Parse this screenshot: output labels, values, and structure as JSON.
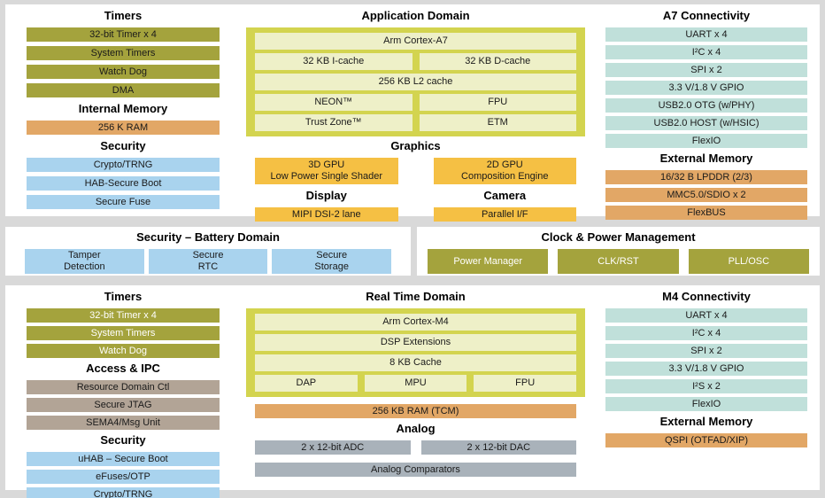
{
  "colors": {
    "olive": "#a4a33d",
    "orange": "#e2a766",
    "blue": "#a9d3ee",
    "teal": "#c0e0da",
    "amber": "#f5c044",
    "domain_container": "#d3d44f",
    "domain_cell": "#eef0c8",
    "tan": "#b2a496",
    "gray": "#a9b2ba",
    "panel_bg": "#ffffff",
    "page_bg": "#d9d9d9"
  },
  "top_panel": {
    "left": {
      "timers_header": "Timers",
      "timers": [
        "32-bit Timer x 4",
        "System Timers",
        "Watch Dog",
        "DMA"
      ],
      "internal_memory_header": "Internal Memory",
      "internal_memory": [
        "256 K RAM"
      ],
      "security_header": "Security",
      "security": [
        "Crypto/TRNG",
        "HAB-Secure Boot",
        "Secure Fuse"
      ]
    },
    "center": {
      "header": "Application Domain",
      "cpu_rows": {
        "row1": [
          "Arm Cortex-A7"
        ],
        "row2": [
          "32 KB I-cache",
          "32 KB D-cache"
        ],
        "row3": [
          "256 KB L2 cache"
        ],
        "row4": [
          "NEON™",
          "FPU"
        ],
        "row5": [
          "Trust Zone™",
          "ETM"
        ]
      },
      "graphics_header": "Graphics",
      "graphics": [
        "3D GPU\nLow Power Single Shader",
        "2D GPU\nComposition Engine"
      ],
      "display_header": "Display",
      "display": "MIPI DSI-2 lane",
      "camera_header": "Camera",
      "camera": "Parallel I/F"
    },
    "right": {
      "connectivity_header": "A7 Connectivity",
      "connectivity": [
        "UART x 4",
        "I²C x 4",
        "SPI x 2",
        "3.3 V/1.8 V GPIO",
        "USB2.0 OTG (w/PHY)",
        "USB2.0 HOST (w/HSIC)",
        "FlexIO"
      ],
      "external_memory_header": "External Memory",
      "external_memory": [
        "16/32 B LPDDR (2/3)",
        "MMC5.0/SDIO x 2",
        "FlexBUS"
      ]
    }
  },
  "middle": {
    "security_battery": {
      "header": "Security – Battery Domain",
      "blocks": [
        "Tamper\nDetection",
        "Secure\nRTC",
        "Secure\nStorage"
      ]
    },
    "clock_power": {
      "header": "Clock & Power Management",
      "blocks": [
        "Power Manager",
        "CLK/RST",
        "PLL/OSC"
      ]
    }
  },
  "bottom_panel": {
    "left": {
      "timers_header": "Timers",
      "timers": [
        "32-bit Timer x 4",
        "System Timers",
        "Watch Dog"
      ],
      "access_header": "Access & IPC",
      "access": [
        "Resource Domain Ctl",
        "Secure JTAG",
        "SEMA4/Msg Unit"
      ],
      "security_header": "Security",
      "security": [
        "uHAB – Secure Boot",
        "eFuses/OTP",
        "Crypto/TRNG"
      ]
    },
    "center": {
      "header": "Real Time Domain",
      "cpu_rows": {
        "row1": [
          "Arm Cortex-M4"
        ],
        "row2": [
          "DSP Extensions"
        ],
        "row3": [
          "8 KB Cache"
        ],
        "row4": [
          "DAP",
          "MPU",
          "FPU"
        ]
      },
      "ram": "256 KB RAM (TCM)",
      "analog_header": "Analog",
      "analog_row1": [
        "2 x 12-bit ADC",
        "2 x 12-bit DAC"
      ],
      "analog_row2": [
        "Analog Comparators"
      ]
    },
    "right": {
      "connectivity_header": "M4 Connectivity",
      "connectivity": [
        "UART x 4",
        "I²C x 4",
        "SPI x 2",
        "3.3 V/1.8 V GPIO",
        "I²S x 2",
        "FlexIO"
      ],
      "external_memory_header": "External Memory",
      "external_memory": [
        "QSPI (OTFAD/XIP)"
      ]
    }
  }
}
